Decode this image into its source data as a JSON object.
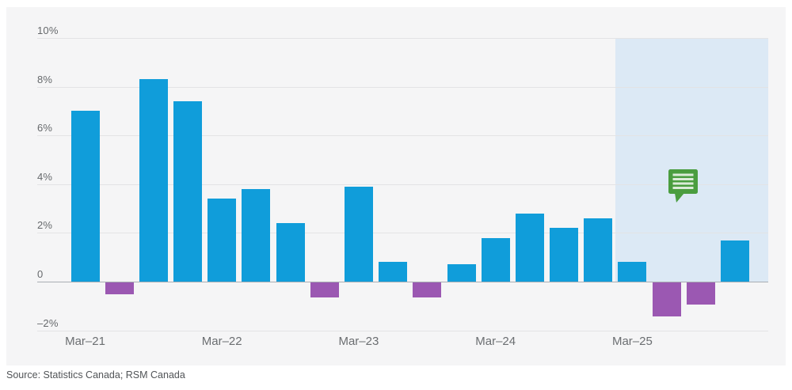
{
  "chart_data": {
    "type": "bar",
    "categories": [
      "Mar–21",
      "Jun–21",
      "Sep–21",
      "Dec–21",
      "Mar–22",
      "Jun–22",
      "Sep–22",
      "Dec–22",
      "Mar–23",
      "Jun–23",
      "Sep–23",
      "Dec–23",
      "Mar–24",
      "Jun–24",
      "Sep–24",
      "Dec–24",
      "Mar–25",
      "Jun–25",
      "Sep–25",
      "Dec–25"
    ],
    "values": [
      7.0,
      -0.5,
      8.3,
      7.4,
      3.4,
      3.8,
      2.4,
      -0.6,
      3.9,
      0.8,
      -0.6,
      0.7,
      1.8,
      2.8,
      2.2,
      2.6,
      0.8,
      -1.4,
      -0.9,
      1.7
    ],
    "unit": "%",
    "ylim": [
      -2,
      10
    ],
    "grid": "horizontal",
    "legend": "none",
    "y_axis": {
      "ticks": [
        {
          "value": 10,
          "label": "10%"
        },
        {
          "value": 8,
          "label": "8%"
        },
        {
          "value": 6,
          "label": "6%"
        },
        {
          "value": 4,
          "label": "4%"
        },
        {
          "value": 2,
          "label": "2%"
        },
        {
          "value": 0,
          "label": "0"
        },
        {
          "value": -2,
          "label": "–2%"
        }
      ]
    },
    "x_axis": {
      "ticks": [
        {
          "index": 0,
          "label": "Mar–21"
        },
        {
          "index": 4,
          "label": "Mar–22"
        },
        {
          "index": 8,
          "label": "Mar–23"
        },
        {
          "index": 12,
          "label": "Mar–24"
        },
        {
          "index": 16,
          "label": "Mar–25"
        }
      ]
    },
    "forecast_shaded_region": {
      "start_index": 16,
      "covers": [
        "Mar–25",
        "Jun–25",
        "Sep–25",
        "Dec–25"
      ]
    },
    "annotation": {
      "icon": "comment-icon",
      "color": "#4a9d3f"
    },
    "colors": {
      "positive_bar": "#109dda",
      "negative_bar": "#9b58b2",
      "forecast_shade": "#dce9f5",
      "plot_background": "#f5f5f6",
      "gridline": "#e3e3e5",
      "zero_line": "#a9aeb3",
      "y_tick_text": "#66696c",
      "x_tick_text": "#6b6e71"
    }
  },
  "source": {
    "text": "Source: Statistics Canada; RSM Canada"
  }
}
